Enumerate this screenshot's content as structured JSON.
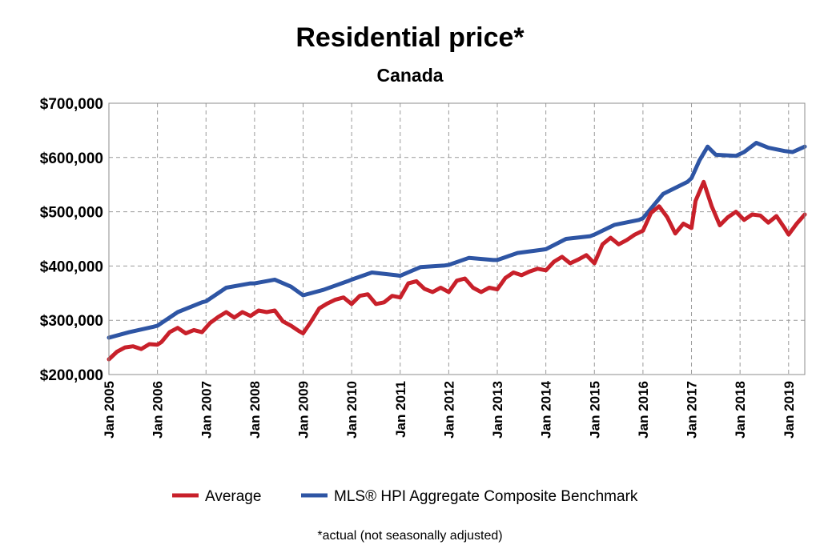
{
  "chart_data": {
    "type": "line",
    "title": "Residential price*",
    "subtitle": "Canada",
    "note": "*actual (not seasonally adjusted)",
    "ylim": [
      200000,
      700000
    ],
    "yticks": [
      {
        "value": 200000,
        "label": "$200,000"
      },
      {
        "value": 300000,
        "label": "$300,000"
      },
      {
        "value": 400000,
        "label": "$400,000"
      },
      {
        "value": 500000,
        "label": "$500,000"
      },
      {
        "value": 600000,
        "label": "$600,000"
      },
      {
        "value": 700000,
        "label": "$700,000"
      }
    ],
    "xlim": [
      "2005-01",
      "2019-05"
    ],
    "xticks": [
      {
        "date": "2005-01",
        "label": "Jan 2005"
      },
      {
        "date": "2006-01",
        "label": "Jan 2006"
      },
      {
        "date": "2007-01",
        "label": "Jan 2007"
      },
      {
        "date": "2008-01",
        "label": "Jan 2008"
      },
      {
        "date": "2009-01",
        "label": "Jan 2009"
      },
      {
        "date": "2010-01",
        "label": "Jan 2010"
      },
      {
        "date": "2011-01",
        "label": "Jan 2011"
      },
      {
        "date": "2012-01",
        "label": "Jan 2012"
      },
      {
        "date": "2013-01",
        "label": "Jan 2013"
      },
      {
        "date": "2014-01",
        "label": "Jan 2014"
      },
      {
        "date": "2015-01",
        "label": "Jan 2015"
      },
      {
        "date": "2016-01",
        "label": "Jan 2016"
      },
      {
        "date": "2017-01",
        "label": "Jan 2017"
      },
      {
        "date": "2018-01",
        "label": "Jan 2018"
      },
      {
        "date": "2019-01",
        "label": "Jan 2019"
      }
    ],
    "grid": true,
    "legend_position": "bottom",
    "series": [
      {
        "name": "Average",
        "color": "#c8202a",
        "points": [
          [
            "2005-01",
            228000
          ],
          [
            "2005-03",
            242000
          ],
          [
            "2005-05",
            250000
          ],
          [
            "2005-07",
            252000
          ],
          [
            "2005-09",
            247000
          ],
          [
            "2005-11",
            256000
          ],
          [
            "2006-01",
            255000
          ],
          [
            "2006-02",
            260000
          ],
          [
            "2006-04",
            278000
          ],
          [
            "2006-06",
            286000
          ],
          [
            "2006-08",
            276000
          ],
          [
            "2006-10",
            282000
          ],
          [
            "2006-12",
            278000
          ],
          [
            "2007-02",
            295000
          ],
          [
            "2007-04",
            306000
          ],
          [
            "2007-06",
            315000
          ],
          [
            "2007-08",
            305000
          ],
          [
            "2007-10",
            315000
          ],
          [
            "2007-12",
            308000
          ],
          [
            "2008-02",
            318000
          ],
          [
            "2008-04",
            315000
          ],
          [
            "2008-06",
            318000
          ],
          [
            "2008-08",
            298000
          ],
          [
            "2008-10",
            290000
          ],
          [
            "2008-12",
            280000
          ],
          [
            "2009-01",
            276000
          ],
          [
            "2009-03",
            298000
          ],
          [
            "2009-05",
            322000
          ],
          [
            "2009-07",
            331000
          ],
          [
            "2009-09",
            338000
          ],
          [
            "2009-11",
            342000
          ],
          [
            "2010-01",
            330000
          ],
          [
            "2010-03",
            345000
          ],
          [
            "2010-05",
            348000
          ],
          [
            "2010-07",
            330000
          ],
          [
            "2010-09",
            333000
          ],
          [
            "2010-11",
            345000
          ],
          [
            "2011-01",
            342000
          ],
          [
            "2011-03",
            368000
          ],
          [
            "2011-05",
            372000
          ],
          [
            "2011-07",
            358000
          ],
          [
            "2011-09",
            352000
          ],
          [
            "2011-11",
            360000
          ],
          [
            "2012-01",
            352000
          ],
          [
            "2012-03",
            373000
          ],
          [
            "2012-05",
            377000
          ],
          [
            "2012-07",
            360000
          ],
          [
            "2012-09",
            352000
          ],
          [
            "2012-11",
            360000
          ],
          [
            "2013-01",
            357000
          ],
          [
            "2013-03",
            378000
          ],
          [
            "2013-05",
            388000
          ],
          [
            "2013-07",
            383000
          ],
          [
            "2013-09",
            390000
          ],
          [
            "2013-11",
            395000
          ],
          [
            "2014-01",
            392000
          ],
          [
            "2014-03",
            408000
          ],
          [
            "2014-05",
            417000
          ],
          [
            "2014-07",
            405000
          ],
          [
            "2014-09",
            412000
          ],
          [
            "2014-11",
            420000
          ],
          [
            "2015-01",
            405000
          ],
          [
            "2015-03",
            440000
          ],
          [
            "2015-05",
            452000
          ],
          [
            "2015-07",
            440000
          ],
          [
            "2015-09",
            448000
          ],
          [
            "2015-11",
            458000
          ],
          [
            "2016-01",
            465000
          ],
          [
            "2016-03",
            498000
          ],
          [
            "2016-05",
            510000
          ],
          [
            "2016-07",
            490000
          ],
          [
            "2016-09",
            460000
          ],
          [
            "2016-11",
            478000
          ],
          [
            "2017-01",
            470000
          ],
          [
            "2017-02",
            520000
          ],
          [
            "2017-04",
            555000
          ],
          [
            "2017-06",
            510000
          ],
          [
            "2017-08",
            475000
          ],
          [
            "2017-10",
            490000
          ],
          [
            "2017-12",
            500000
          ],
          [
            "2018-02",
            485000
          ],
          [
            "2018-04",
            495000
          ],
          [
            "2018-06",
            493000
          ],
          [
            "2018-08",
            480000
          ],
          [
            "2018-10",
            492000
          ],
          [
            "2018-12",
            470000
          ],
          [
            "2019-01",
            458000
          ],
          [
            "2019-03",
            478000
          ],
          [
            "2019-05",
            495000
          ]
        ]
      },
      {
        "name": "MLS® HPI Aggregate Composite Benchmark",
        "color": "#2e55a4",
        "points": [
          [
            "2005-01",
            268000
          ],
          [
            "2005-06",
            278000
          ],
          [
            "2005-12",
            288000
          ],
          [
            "2006-01",
            290000
          ],
          [
            "2006-06",
            315000
          ],
          [
            "2006-12",
            333000
          ],
          [
            "2007-01",
            335000
          ],
          [
            "2007-06",
            360000
          ],
          [
            "2007-12",
            368000
          ],
          [
            "2008-01",
            368000
          ],
          [
            "2008-06",
            375000
          ],
          [
            "2008-10",
            362000
          ],
          [
            "2009-01",
            346000
          ],
          [
            "2009-06",
            356000
          ],
          [
            "2009-12",
            372000
          ],
          [
            "2010-01",
            375000
          ],
          [
            "2010-06",
            388000
          ],
          [
            "2010-12",
            383000
          ],
          [
            "2011-01",
            382000
          ],
          [
            "2011-06",
            398000
          ],
          [
            "2011-12",
            401000
          ],
          [
            "2012-01",
            402000
          ],
          [
            "2012-06",
            415000
          ],
          [
            "2012-12",
            411000
          ],
          [
            "2013-01",
            411000
          ],
          [
            "2013-06",
            424000
          ],
          [
            "2013-12",
            430000
          ],
          [
            "2014-01",
            431000
          ],
          [
            "2014-06",
            450000
          ],
          [
            "2014-12",
            455000
          ],
          [
            "2015-01",
            458000
          ],
          [
            "2015-06",
            476000
          ],
          [
            "2015-12",
            485000
          ],
          [
            "2016-01",
            488000
          ],
          [
            "2016-06",
            533000
          ],
          [
            "2016-12",
            555000
          ],
          [
            "2017-01",
            562000
          ],
          [
            "2017-03",
            595000
          ],
          [
            "2017-05",
            620000
          ],
          [
            "2017-07",
            605000
          ],
          [
            "2017-12",
            603000
          ],
          [
            "2018-02",
            610000
          ],
          [
            "2018-05",
            627000
          ],
          [
            "2018-08",
            618000
          ],
          [
            "2018-12",
            612000
          ],
          [
            "2019-02",
            610000
          ],
          [
            "2019-05",
            620000
          ]
        ]
      }
    ]
  }
}
